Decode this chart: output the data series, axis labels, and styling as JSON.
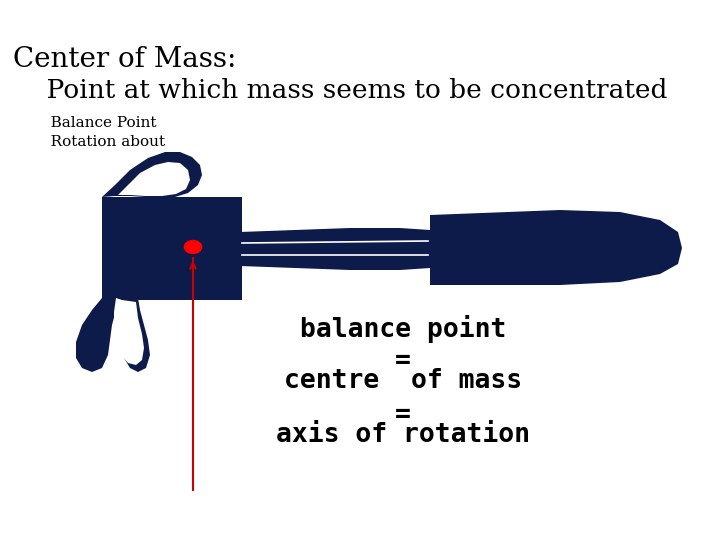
{
  "title_line1": "Center of Mass:",
  "title_line2": "    Point at which mass seems to be concentrated",
  "subtitle_line1": "   Balance Point",
  "subtitle_line2": "   Rotation about",
  "label1": "balance point",
  "eq1": "=",
  "label2": "centre  of mass",
  "eq2": "=",
  "label3": "axis of rotation",
  "bg_color": "#ffffff",
  "title_color": "#000000",
  "subtitle_color": "#000000",
  "label_color": "#000000",
  "hammer_color": "#0d1b4b",
  "dot_color": "#ff0000",
  "arrow_color": "#cc0000",
  "title_fontsize": 20,
  "subtitle_fontsize": 19,
  "small_fontsize": 11,
  "label_fontsize": 19
}
